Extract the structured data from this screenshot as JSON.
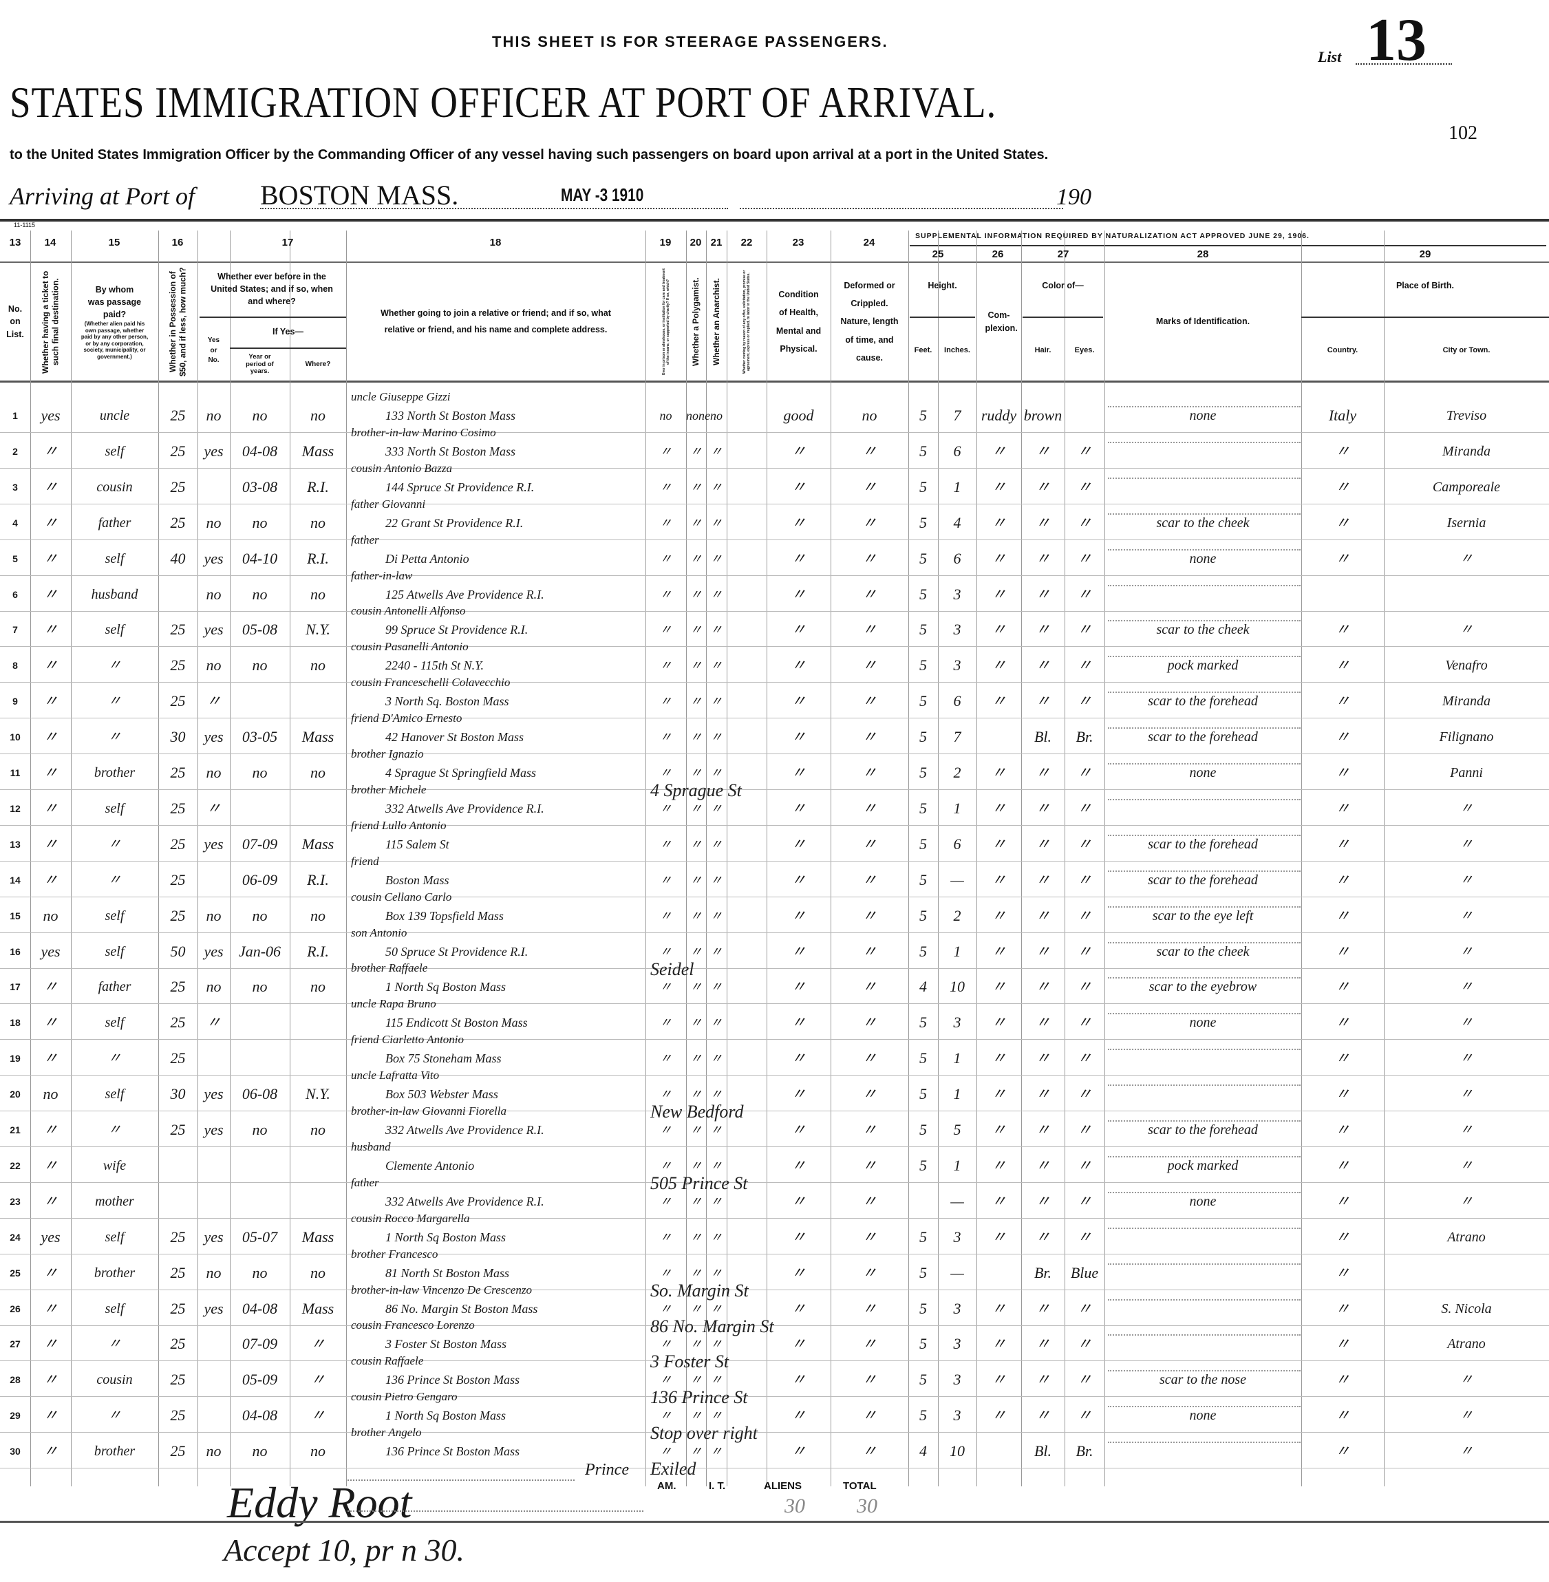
{
  "header": {
    "steerage_note": "THIS SHEET IS FOR STEERAGE PASSENGERS.",
    "list_label": "List",
    "list_number": "13",
    "title": "STATES IMMIGRATION OFFICER AT PORT OF ARRIVAL.",
    "page_number": "102",
    "subtitle": "to the United States Immigration Officer by the Commanding Officer of any vessel having such passengers on board upon arrival at a port in the United States.",
    "arriving_label": "Arriving at Port of",
    "port": "BOSTON MASS.",
    "date_stamp": "MAY -3 1910",
    "year_prefix": "190",
    "form_number": "11-1115"
  },
  "supplemental_heading": "SUPPLEMENTAL INFORMATION REQUIRED BY NATURALIZATION ACT APPROVED JUNE 29, 1906.",
  "columns": {
    "numbers": [
      "13",
      "14",
      "15",
      "16",
      "17",
      "18",
      "19",
      "20",
      "21",
      "22",
      "23",
      "24",
      "25",
      "26",
      "27",
      "28",
      "29"
    ],
    "c13": "No. on List.",
    "c14": "Whether having a ticket to such final destination.",
    "c15": "By whom was passage paid?",
    "c15_note": "(Whether alien paid his own passage, whether paid by any other person, or by any corporation, society, municipality, or government.)",
    "c16": "Whether in Possession of $50, and if less, how much?",
    "c17": "Whether ever before in the United States; and if so, when and where?",
    "c17_yesno": "Yes or No.",
    "c17_ifyes": "If Yes—",
    "c17_year": "Year or period of years.",
    "c17_where": "Where?",
    "c18": "Whether going to join a relative or friend; and if so, what relative or friend, and his name and complete address.",
    "c19": "Ever in prison or almshouse, or institution for care and treatment of the insane, or supported by charity? If so, which?",
    "c20": "Whether a Polygamist.",
    "c21": "Whether an Anarchist.",
    "c22": "Whether coming by reason of any offer, solicitation, promise or agreement, express or implied, to labor in the United States.",
    "c23": "Condition of Health, Mental and Physical.",
    "c24": "Deformed or Crippled. Nature, length of time, and cause.",
    "c25": "Height.",
    "c25_feet": "Feet.",
    "c25_inches": "Inches.",
    "c26": "Com-plexion.",
    "c27": "Color of—",
    "c27_hair": "Hair.",
    "c27_eyes": "Eyes.",
    "c28": "Marks of Identification.",
    "c29": "Place of Birth.",
    "c29_country": "Country.",
    "c29_city": "City or Town."
  },
  "rows": [
    {
      "no": "1",
      "ticket": "yes",
      "paid": "uncle",
      "money": "25",
      "before": "no",
      "year": "no",
      "where": "no",
      "relation": "uncle Giuseppe Gizzi",
      "address": "133 North St  Boston Mass",
      "c19": "no",
      "c20": "none",
      "c21": "no",
      "c22": "",
      "health": "good",
      "deformed": "no",
      "feet": "5",
      "inches": "7",
      "complexion": "ruddy",
      "hair": "brown",
      "eyes": "",
      "marks": "none",
      "country": "Italy",
      "city": "Treviso"
    },
    {
      "no": "2",
      "ticket": "〃",
      "paid": "self",
      "money": "25",
      "before": "yes",
      "year": "04-08",
      "where": "Mass",
      "relation": "brother-in-law Marino Cosimo",
      "address": "333 North St  Boston Mass",
      "c19": "〃",
      "c20": "〃",
      "c21": "〃",
      "c22": "",
      "health": "〃",
      "deformed": "〃",
      "feet": "5",
      "inches": "6",
      "complexion": "〃",
      "hair": "〃",
      "eyes": "〃",
      "marks": "",
      "country": "〃",
      "city": "Miranda"
    },
    {
      "no": "3",
      "ticket": "〃",
      "paid": "cousin",
      "money": "25",
      "before": "",
      "year": "03-08",
      "where": "R.I.",
      "relation": "cousin Antonio Bazza",
      "address": "144 Spruce St  Providence R.I.",
      "c19": "〃",
      "c20": "〃",
      "c21": "〃",
      "c22": "",
      "health": "〃",
      "deformed": "〃",
      "feet": "5",
      "inches": "1",
      "complexion": "〃",
      "hair": "〃",
      "eyes": "〃",
      "marks": "",
      "country": "〃",
      "city": "Camporeale"
    },
    {
      "no": "4",
      "ticket": "〃",
      "paid": "father",
      "money": "25",
      "before": "no",
      "year": "no",
      "where": "no",
      "relation": "father Giovanni",
      "address": "22 Grant St  Providence R.I.",
      "c19": "〃",
      "c20": "〃",
      "c21": "〃",
      "c22": "",
      "health": "〃",
      "deformed": "〃",
      "feet": "5",
      "inches": "4",
      "complexion": "〃",
      "hair": "〃",
      "eyes": "〃",
      "marks": "scar to the cheek",
      "country": "〃",
      "city": "Isernia"
    },
    {
      "no": "5",
      "ticket": "〃",
      "paid": "self",
      "money": "40",
      "before": "yes",
      "year": "04-10",
      "where": "R.I.",
      "relation": "father",
      "address": "Di Petta Antonio",
      "c19": "〃",
      "c20": "〃",
      "c21": "〃",
      "c22": "",
      "health": "〃",
      "deformed": "〃",
      "feet": "5",
      "inches": "6",
      "complexion": "〃",
      "hair": "〃",
      "eyes": "〃",
      "marks": "none",
      "country": "〃",
      "city": "〃"
    },
    {
      "no": "6",
      "ticket": "〃",
      "paid": "husband",
      "money": "",
      "before": "no",
      "year": "no",
      "where": "no",
      "relation": "father-in-law",
      "address": "125 Atwells Ave  Providence R.I.",
      "c19": "〃",
      "c20": "〃",
      "c21": "〃",
      "c22": "",
      "health": "〃",
      "deformed": "〃",
      "feet": "5",
      "inches": "3",
      "complexion": "〃",
      "hair": "〃",
      "eyes": "〃",
      "marks": "",
      "country": "",
      "city": ""
    },
    {
      "no": "7",
      "ticket": "〃",
      "paid": "self",
      "money": "25",
      "before": "yes",
      "year": "05-08",
      "where": "N.Y.",
      "relation": "cousin Antonelli Alfonso",
      "address": "99 Spruce St  Providence R.I.",
      "c19": "〃",
      "c20": "〃",
      "c21": "〃",
      "c22": "",
      "health": "〃",
      "deformed": "〃",
      "feet": "5",
      "inches": "3",
      "complexion": "〃",
      "hair": "〃",
      "eyes": "〃",
      "marks": "scar to the cheek",
      "country": "〃",
      "city": "〃"
    },
    {
      "no": "8",
      "ticket": "〃",
      "paid": "〃",
      "money": "25",
      "before": "no",
      "year": "no",
      "where": "no",
      "relation": "cousin Pasanelli Antonio",
      "address": "2240 - 115th St  N.Y.",
      "c19": "〃",
      "c20": "〃",
      "c21": "〃",
      "c22": "",
      "health": "〃",
      "deformed": "〃",
      "feet": "5",
      "inches": "3",
      "complexion": "〃",
      "hair": "〃",
      "eyes": "〃",
      "marks": "pock marked",
      "country": "〃",
      "city": "Venafro"
    },
    {
      "no": "9",
      "ticket": "〃",
      "paid": "〃",
      "money": "25",
      "before": "〃",
      "year": "",
      "where": "",
      "relation": "cousin Franceschelli Colavecchio",
      "address": "3 North Sq.  Boston Mass",
      "c19": "〃",
      "c20": "〃",
      "c21": "〃",
      "c22": "",
      "health": "〃",
      "deformed": "〃",
      "feet": "5",
      "inches": "6",
      "complexion": "〃",
      "hair": "〃",
      "eyes": "〃",
      "marks": "scar to the forehead",
      "country": "〃",
      "city": "Miranda"
    },
    {
      "no": "10",
      "ticket": "〃",
      "paid": "〃",
      "money": "30",
      "before": "yes",
      "year": "03-05",
      "where": "Mass",
      "relation": "friend D'Amico Ernesto",
      "address": "42 Hanover St  Boston Mass",
      "c19": "〃",
      "c20": "〃",
      "c21": "〃",
      "c22": "",
      "health": "〃",
      "deformed": "〃",
      "feet": "5",
      "inches": "7",
      "complexion": "",
      "hair": "Bl.",
      "eyes": "Br.",
      "marks": "scar to the forehead",
      "country": "〃",
      "city": "Filignano"
    },
    {
      "no": "11",
      "ticket": "〃",
      "paid": "brother",
      "money": "25",
      "before": "no",
      "year": "no",
      "where": "no",
      "relation": "brother Ignazio",
      "address": "4 Sprague St  Springfield Mass",
      "c19": "〃",
      "c20": "〃",
      "c21": "〃",
      "c22": "",
      "health": "〃",
      "deformed": "〃",
      "feet": "5",
      "inches": "2",
      "complexion": "〃",
      "hair": "〃",
      "eyes": "〃",
      "marks": "none",
      "country": "〃",
      "city": "Panni"
    },
    {
      "no": "12",
      "ticket": "〃",
      "paid": "self",
      "money": "25",
      "before": "〃",
      "year": "",
      "where": "",
      "relation": "brother Michele",
      "address": "332 Atwells Ave  Providence R.I.",
      "c19": "〃",
      "c20": "〃",
      "c21": "〃",
      "c22": "",
      "health": "〃",
      "deformed": "〃",
      "feet": "5",
      "inches": "1",
      "complexion": "〃",
      "hair": "〃",
      "eyes": "〃",
      "marks": "",
      "country": "〃",
      "city": "〃"
    },
    {
      "no": "13",
      "ticket": "〃",
      "paid": "〃",
      "money": "25",
      "before": "yes",
      "year": "07-09",
      "where": "Mass",
      "relation": "friend Lullo Antonio",
      "address": "115 Salem St",
      "c19": "〃",
      "c20": "〃",
      "c21": "〃",
      "c22": "",
      "health": "〃",
      "deformed": "〃",
      "feet": "5",
      "inches": "6",
      "complexion": "〃",
      "hair": "〃",
      "eyes": "〃",
      "marks": "scar to the forehead",
      "country": "〃",
      "city": "〃"
    },
    {
      "no": "14",
      "ticket": "〃",
      "paid": "〃",
      "money": "25",
      "before": "",
      "year": "06-09",
      "where": "R.I.",
      "relation": "friend",
      "address": "Boston Mass",
      "c19": "〃",
      "c20": "〃",
      "c21": "〃",
      "c22": "",
      "health": "〃",
      "deformed": "〃",
      "feet": "5",
      "inches": "—",
      "complexion": "〃",
      "hair": "〃",
      "eyes": "〃",
      "marks": "scar to the forehead",
      "country": "〃",
      "city": "〃"
    },
    {
      "no": "15",
      "ticket": "no",
      "paid": "self",
      "money": "25",
      "before": "no",
      "year": "no",
      "where": "no",
      "relation": "cousin Cellano Carlo",
      "address": "Box 139  Topsfield Mass",
      "c19": "〃",
      "c20": "〃",
      "c21": "〃",
      "c22": "",
      "health": "〃",
      "deformed": "〃",
      "feet": "5",
      "inches": "2",
      "complexion": "〃",
      "hair": "〃",
      "eyes": "〃",
      "marks": "scar to the eye left",
      "country": "〃",
      "city": "〃"
    },
    {
      "no": "16",
      "ticket": "yes",
      "paid": "self",
      "money": "50",
      "before": "yes",
      "year": "Jan-06",
      "where": "R.I.",
      "relation": "son Antonio",
      "address": "50 Spruce St  Providence R.I.",
      "c19": "〃",
      "c20": "〃",
      "c21": "〃",
      "c22": "",
      "health": "〃",
      "deformed": "〃",
      "feet": "5",
      "inches": "1",
      "complexion": "〃",
      "hair": "〃",
      "eyes": "〃",
      "marks": "scar to the cheek",
      "country": "〃",
      "city": "〃"
    },
    {
      "no": "17",
      "ticket": "〃",
      "paid": "father",
      "money": "25",
      "before": "no",
      "year": "no",
      "where": "no",
      "relation": "brother Raffaele",
      "address": "1 North Sq  Boston Mass",
      "c19": "〃",
      "c20": "〃",
      "c21": "〃",
      "c22": "",
      "health": "〃",
      "deformed": "〃",
      "feet": "4",
      "inches": "10",
      "complexion": "〃",
      "hair": "〃",
      "eyes": "〃",
      "marks": "scar to the eyebrow",
      "country": "〃",
      "city": "〃"
    },
    {
      "no": "18",
      "ticket": "〃",
      "paid": "self",
      "money": "25",
      "before": "〃",
      "year": "",
      "where": "",
      "relation": "uncle Rapa Bruno",
      "address": "115 Endicott St  Boston Mass",
      "c19": "〃",
      "c20": "〃",
      "c21": "〃",
      "c22": "",
      "health": "〃",
      "deformed": "〃",
      "feet": "5",
      "inches": "3",
      "complexion": "〃",
      "hair": "〃",
      "eyes": "〃",
      "marks": "none",
      "country": "〃",
      "city": "〃"
    },
    {
      "no": "19",
      "ticket": "〃",
      "paid": "〃",
      "money": "25",
      "before": "",
      "year": "",
      "where": "",
      "relation": "friend Ciarletto Antonio",
      "address": "Box 75  Stoneham Mass",
      "c19": "〃",
      "c20": "〃",
      "c21": "〃",
      "c22": "",
      "health": "〃",
      "deformed": "〃",
      "feet": "5",
      "inches": "1",
      "complexion": "〃",
      "hair": "〃",
      "eyes": "〃",
      "marks": "",
      "country": "〃",
      "city": "〃"
    },
    {
      "no": "20",
      "ticket": "no",
      "paid": "self",
      "money": "30",
      "before": "yes",
      "year": "06-08",
      "where": "N.Y.",
      "relation": "uncle Lafratta Vito",
      "address": "Box 503  Webster Mass",
      "c19": "〃",
      "c20": "〃",
      "c21": "〃",
      "c22": "",
      "health": "〃",
      "deformed": "〃",
      "feet": "5",
      "inches": "1",
      "complexion": "〃",
      "hair": "〃",
      "eyes": "〃",
      "marks": "",
      "country": "〃",
      "city": "〃"
    },
    {
      "no": "21",
      "ticket": "〃",
      "paid": "〃",
      "money": "25",
      "before": "yes",
      "year": "no",
      "where": "no",
      "relation": "brother-in-law Giovanni Fiorella",
      "address": "332 Atwells Ave  Providence R.I.",
      "c19": "〃",
      "c20": "〃",
      "c21": "〃",
      "c22": "",
      "health": "〃",
      "deformed": "〃",
      "feet": "5",
      "inches": "5",
      "complexion": "〃",
      "hair": "〃",
      "eyes": "〃",
      "marks": "scar to the forehead",
      "country": "〃",
      "city": "〃"
    },
    {
      "no": "22",
      "ticket": "〃",
      "paid": "wife",
      "money": "",
      "before": "",
      "year": "",
      "where": "",
      "relation": "husband",
      "address": "Clemente Antonio",
      "c19": "〃",
      "c20": "〃",
      "c21": "〃",
      "c22": "",
      "health": "〃",
      "deformed": "〃",
      "feet": "5",
      "inches": "1",
      "complexion": "〃",
      "hair": "〃",
      "eyes": "〃",
      "marks": "pock marked",
      "country": "〃",
      "city": "〃"
    },
    {
      "no": "23",
      "ticket": "〃",
      "paid": "mother",
      "money": "",
      "before": "",
      "year": "",
      "where": "",
      "relation": "father",
      "address": "332 Atwells Ave  Providence R.I.",
      "c19": "〃",
      "c20": "〃",
      "c21": "〃",
      "c22": "",
      "health": "〃",
      "deformed": "〃",
      "feet": "",
      "inches": "—",
      "complexion": "〃",
      "hair": "〃",
      "eyes": "〃",
      "marks": "none",
      "country": "〃",
      "city": "〃"
    },
    {
      "no": "24",
      "ticket": "yes",
      "paid": "self",
      "money": "25",
      "before": "yes",
      "year": "05-07",
      "where": "Mass",
      "relation": "cousin Rocco Margarella",
      "address": "1 North Sq  Boston Mass",
      "c19": "〃",
      "c20": "〃",
      "c21": "〃",
      "c22": "",
      "health": "〃",
      "deformed": "〃",
      "feet": "5",
      "inches": "3",
      "complexion": "〃",
      "hair": "〃",
      "eyes": "〃",
      "marks": "",
      "country": "〃",
      "city": "Atrano"
    },
    {
      "no": "25",
      "ticket": "〃",
      "paid": "brother",
      "money": "25",
      "before": "no",
      "year": "no",
      "where": "no",
      "relation": "brother Francesco",
      "address": "81 North St  Boston Mass",
      "c19": "〃",
      "c20": "〃",
      "c21": "〃",
      "c22": "",
      "health": "〃",
      "deformed": "〃",
      "feet": "5",
      "inches": "—",
      "complexion": "",
      "hair": "Br.",
      "eyes": "Blue",
      "marks": "",
      "country": "〃",
      "city": ""
    },
    {
      "no": "26",
      "ticket": "〃",
      "paid": "self",
      "money": "25",
      "before": "yes",
      "year": "04-08",
      "where": "Mass",
      "relation": "brother-in-law Vincenzo De Crescenzo",
      "address": "86 No. Margin St  Boston Mass",
      "c19": "〃",
      "c20": "〃",
      "c21": "〃",
      "c22": "",
      "health": "〃",
      "deformed": "〃",
      "feet": "5",
      "inches": "3",
      "complexion": "〃",
      "hair": "〃",
      "eyes": "〃",
      "marks": "",
      "country": "〃",
      "city": "S. Nicola"
    },
    {
      "no": "27",
      "ticket": "〃",
      "paid": "〃",
      "money": "25",
      "before": "",
      "year": "07-09",
      "where": "〃",
      "relation": "cousin Francesco Lorenzo",
      "address": "3 Foster St  Boston Mass",
      "c19": "〃",
      "c20": "〃",
      "c21": "〃",
      "c22": "",
      "health": "〃",
      "deformed": "〃",
      "feet": "5",
      "inches": "3",
      "complexion": "〃",
      "hair": "〃",
      "eyes": "〃",
      "marks": "",
      "country": "〃",
      "city": "Atrano"
    },
    {
      "no": "28",
      "ticket": "〃",
      "paid": "cousin",
      "money": "25",
      "before": "",
      "year": "05-09",
      "where": "〃",
      "relation": "cousin Raffaele",
      "address": "136 Prince St  Boston Mass",
      "c19": "〃",
      "c20": "〃",
      "c21": "〃",
      "c22": "",
      "health": "〃",
      "deformed": "〃",
      "feet": "5",
      "inches": "3",
      "complexion": "〃",
      "hair": "〃",
      "eyes": "〃",
      "marks": "scar to the nose",
      "country": "〃",
      "city": "〃"
    },
    {
      "no": "29",
      "ticket": "〃",
      "paid": "〃",
      "money": "25",
      "before": "",
      "year": "04-08",
      "where": "〃",
      "relation": "cousin Pietro Gengaro",
      "address": "1 North Sq  Boston Mass",
      "c19": "〃",
      "c20": "〃",
      "c21": "〃",
      "c22": "",
      "health": "〃",
      "deformed": "〃",
      "feet": "5",
      "inches": "3",
      "complexion": "〃",
      "hair": "〃",
      "eyes": "〃",
      "marks": "none",
      "country": "〃",
      "city": "〃"
    },
    {
      "no": "30",
      "ticket": "〃",
      "paid": "brother",
      "money": "25",
      "before": "no",
      "year": "no",
      "where": "no",
      "relation": "brother Angelo",
      "address": "136 Prince St  Boston Mass",
      "c19": "〃",
      "c20": "〃",
      "c21": "〃",
      "c22": "",
      "health": "〃",
      "deformed": "〃",
      "feet": "4",
      "inches": "10",
      "complexion": "",
      "hair": "Bl.",
      "eyes": "Br.",
      "marks": "",
      "country": "〃",
      "city": "〃"
    }
  ],
  "overwrites": [
    {
      "row": 11,
      "text": "4 Sprague St"
    },
    {
      "row": 16,
      "text": "Seidel"
    },
    {
      "row": 20,
      "text": "New Bedford"
    },
    {
      "row": 22,
      "text": "505 Prince St"
    },
    {
      "row": 25,
      "text": "So. Margin St"
    },
    {
      "row": 26,
      "text": "86 No. Margin St"
    },
    {
      "row": 27,
      "text": "3 Foster St"
    },
    {
      "row": 28,
      "text": "136 Prince St"
    },
    {
      "row": 29,
      "text": "Stop over right"
    },
    {
      "row": 30,
      "text": "Exiled"
    }
  ],
  "footer": {
    "prince_note": "Prince",
    "signature": "Eddy Root",
    "accept_note": "Accept 10, pr n 30.",
    "labels": {
      "am": "AM.",
      "it": "I. T.",
      "aliens": "ALIENS",
      "total": "TOTAL"
    },
    "aliens_count": "30",
    "total_count": "30"
  }
}
